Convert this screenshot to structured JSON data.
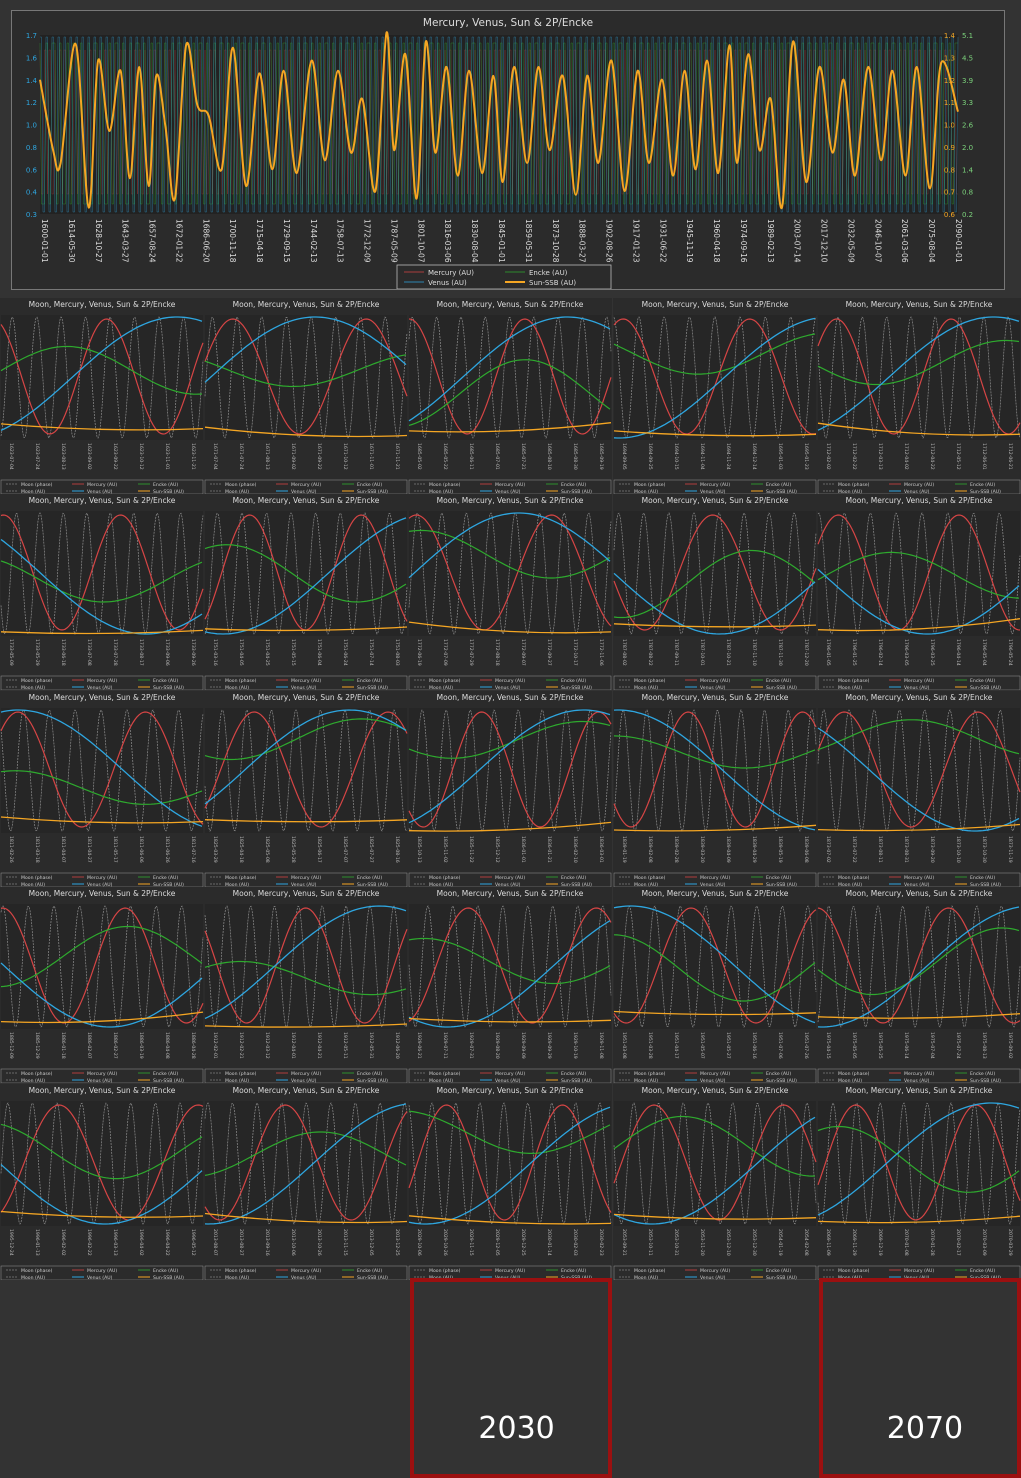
{
  "colors": {
    "moon": "#aaaaaa",
    "mercury": "#d64545",
    "venus": "#2ea6e0",
    "encke": "#2eaa2e",
    "sun": "#f5a623",
    "text": "#dddddd",
    "right_axis": "#7cd37c",
    "highlight": "#9b1010"
  },
  "chart_data": [
    {
      "type": "line",
      "title": "Mercury, Venus, Sun & 2P/Encke",
      "xlabel": "",
      "ylabel": "",
      "ylim": [
        0.3,
        1.7
      ],
      "y2lim": [
        0.2,
        5.1
      ],
      "y_ticks": [
        "0.3",
        "0.4",
        "0.6",
        "0.8",
        "1.0",
        "1.2",
        "1.4",
        "1.6",
        "1.7"
      ],
      "y2_ticks": [
        "0.2",
        "0.8",
        "1.4",
        "2.0",
        "2.6",
        "3.3",
        "3.9",
        "4.5",
        "5.1"
      ],
      "y2_inner_ticks": [
        "0.6",
        "0.7",
        "0.8",
        "0.9",
        "1.0",
        "1.1",
        "1.2",
        "1.3",
        "1.4"
      ],
      "x_tick_labels": [
        "1600-01-01",
        "1614-05-30",
        "1628-10-27",
        "1643-03-27",
        "1657-08-24",
        "1672-01-22",
        "1686-06-20",
        "1700-11-18",
        "1715-04-18",
        "1729-09-15",
        "1744-02-13",
        "1758-07-13",
        "1772-12-09",
        "1787-05-09",
        "1801-10-07",
        "1816-03-06",
        "1830-08-04",
        "1845-01-01",
        "1859-05-31",
        "1873-10-28",
        "1888-03-27",
        "1902-08-26",
        "1917-01-23",
        "1931-06-22",
        "1945-11-19",
        "1960-04-18",
        "1974-09-16",
        "1989-02-13",
        "2003-07-14",
        "2017-12-10",
        "2032-05-09",
        "2046-10-07",
        "2061-03-06",
        "2075-08-04",
        "2090-01-01"
      ],
      "legend": [
        "Mercury (AU)",
        "Encke (AU)",
        "Venus (AU)",
        "Sun-SSB (AU)"
      ],
      "legend_position": "bottom-center",
      "sun_ssb": {
        "x_years": [
          1600,
          1607,
          1611,
          1619,
          1626,
          1631,
          1637,
          1643,
          1648,
          1653,
          1658,
          1662,
          1667,
          1672,
          1678,
          1684,
          1690,
          1697,
          1703,
          1710,
          1717,
          1724,
          1730,
          1737,
          1745,
          1752,
          1759,
          1766,
          1772,
          1779,
          1785,
          1789,
          1795,
          1801,
          1806,
          1811,
          1817,
          1823,
          1829,
          1836,
          1842,
          1847,
          1853,
          1860,
          1866,
          1872,
          1879,
          1886,
          1892,
          1898,
          1905,
          1912,
          1919,
          1925,
          1932,
          1938,
          1944,
          1950,
          1956,
          1962,
          1968,
          1972,
          1978,
          1984,
          1990,
          1996,
          2002,
          2009,
          2016,
          2023,
          2029,
          2035,
          2042,
          2049,
          2055,
          2062,
          2068,
          2075,
          2081,
          2090
        ],
        "y_au": [
          1.35,
          0.8,
          0.7,
          1.63,
          0.35,
          1.5,
          0.95,
          1.42,
          0.58,
          1.45,
          0.52,
          1.38,
          0.98,
          0.42,
          1.62,
          1.15,
          1.07,
          0.65,
          1.6,
          0.52,
          1.4,
          0.65,
          1.42,
          0.62,
          1.5,
          0.72,
          1.42,
          0.78,
          1.2,
          0.48,
          1.72,
          0.8,
          1.55,
          0.42,
          1.65,
          0.78,
          1.45,
          0.6,
          1.42,
          0.62,
          1.38,
          0.55,
          1.45,
          0.7,
          1.45,
          0.8,
          1.38,
          0.45,
          1.38,
          0.7,
          1.5,
          0.48,
          1.42,
          0.7,
          1.35,
          0.6,
          1.42,
          0.65,
          1.5,
          0.62,
          1.62,
          0.7,
          1.55,
          0.8,
          1.2,
          0.35,
          1.65,
          0.55,
          1.45,
          0.78,
          1.35,
          0.6,
          1.45,
          0.72,
          1.42,
          0.6,
          1.45,
          0.5,
          1.48,
          1.1
        ]
      }
    },
    {
      "type": "line-grid",
      "rows": 6,
      "cols": 5,
      "title": "Moon, Mercury, Venus, Sun & 2P/Encke",
      "legend": [
        "Moon (phase)",
        "Mercury (AU)",
        "Encke (AU)",
        "Moon (AU)",
        "Venus (AU)",
        "Sun-SSB (AU)"
      ],
      "highlights": [
        {
          "row": 5,
          "col": 2,
          "label": "2030"
        },
        {
          "row": 5,
          "col": 4,
          "label": "2070"
        }
      ],
      "panels": [
        {
          "date_labels": [
            "1623-07-04",
            "1623-07-24",
            "1623-08-13",
            "1623-09-02",
            "1623-09-22",
            "1623-10-12",
            "1623-11-01",
            "1623-11-21"
          ]
        },
        {
          "date_labels": [
            "1671-07-04",
            "1671-07-24",
            "1671-08-13",
            "1671-09-02",
            "1671-09-22",
            "1671-10-12",
            "1671-11-01",
            "1671-11-21"
          ]
        },
        {
          "date_labels": [
            "1685-05-02",
            "1685-05-22",
            "1685-06-11",
            "1685-07-01",
            "1685-07-21",
            "1685-08-10",
            "1685-08-30",
            "1685-09-19"
          ]
        },
        {
          "date_labels": [
            "1694-09-05",
            "1694-09-25",
            "1694-10-15",
            "1694-11-04",
            "1694-11-24",
            "1694-12-14",
            "1695-01-03",
            "1695-01-23"
          ]
        },
        {
          "date_labels": [
            "1712-02-02",
            "1712-02-22",
            "1712-03-13",
            "1712-04-02",
            "1712-04-22",
            "1712-05-12",
            "1712-06-01",
            "1712-06-21"
          ]
        },
        {
          "date_labels": [
            "1733-05-09",
            "1733-05-29",
            "1733-06-18",
            "1733-07-08",
            "1733-07-28",
            "1733-08-17",
            "1733-09-06",
            "1733-09-26"
          ]
        },
        {
          "date_labels": [
            "1751-03-16",
            "1751-04-05",
            "1751-04-25",
            "1751-05-15",
            "1751-06-04",
            "1751-06-24",
            "1751-07-14",
            "1751-08-03"
          ]
        },
        {
          "date_labels": [
            "1772-06-19",
            "1772-07-09",
            "1772-07-29",
            "1772-08-18",
            "1772-09-07",
            "1772-09-27",
            "1772-10-17",
            "1772-11-06"
          ]
        },
        {
          "date_labels": [
            "1787-08-02",
            "1787-08-22",
            "1787-09-11",
            "1787-10-01",
            "1787-10-21",
            "1787-11-10",
            "1787-11-30",
            "1787-12-20"
          ]
        },
        {
          "date_labels": [
            "1796-01-05",
            "1796-01-25",
            "1796-02-14",
            "1796-03-05",
            "1796-03-25",
            "1796-04-14",
            "1796-05-04",
            "1796-05-24"
          ]
        },
        {
          "date_labels": [
            "1811-02-26",
            "1811-03-18",
            "1811-04-07",
            "1811-04-27",
            "1811-05-17",
            "1811-06-06",
            "1811-06-26",
            "1811-07-16"
          ]
        },
        {
          "date_labels": [
            "1825-03-29",
            "1825-04-18",
            "1825-05-08",
            "1825-05-28",
            "1825-06-17",
            "1825-07-07",
            "1825-07-27",
            "1825-08-16"
          ]
        },
        {
          "date_labels": [
            "1835-10-13",
            "1835-11-02",
            "1835-11-22",
            "1835-12-12",
            "1836-01-01",
            "1836-01-21",
            "1836-02-10",
            "1836-03-01"
          ]
        },
        {
          "date_labels": [
            "1839-01-19",
            "1839-02-08",
            "1839-02-28",
            "1839-03-20",
            "1839-04-09",
            "1839-04-29",
            "1839-05-19",
            "1839-06-08"
          ]
        },
        {
          "date_labels": [
            "1873-07-02",
            "1873-07-22",
            "1873-08-11",
            "1873-08-31",
            "1873-09-20",
            "1873-10-10",
            "1873-10-30",
            "1873-11-19"
          ]
        },
        {
          "date_labels": [
            "1885-12-09",
            "1885-12-29",
            "1886-01-18",
            "1886-02-07",
            "1886-02-27",
            "1886-03-19",
            "1886-04-08",
            "1886-04-28"
          ]
        },
        {
          "date_labels": [
            "1912-02-01",
            "1912-02-21",
            "1912-03-12",
            "1912-04-01",
            "1912-04-21",
            "1912-05-11",
            "1912-05-31",
            "1912-06-20"
          ]
        },
        {
          "date_labels": [
            "1929-06-21",
            "1929-07-11",
            "1929-07-31",
            "1929-08-20",
            "1929-09-09",
            "1929-09-29",
            "1929-10-19",
            "1929-11-08"
          ]
        },
        {
          "date_labels": [
            "1951-03-08",
            "1951-03-28",
            "1951-04-17",
            "1951-05-07",
            "1951-05-27",
            "1951-06-16",
            "1951-07-06",
            "1951-07-26"
          ]
        },
        {
          "date_labels": [
            "1975-04-15",
            "1975-05-05",
            "1975-05-25",
            "1975-06-14",
            "1975-07-04",
            "1975-07-24",
            "1975-08-13",
            "1975-09-02"
          ]
        },
        {
          "date_labels": [
            "1995-12-24",
            "1996-01-13",
            "1996-02-02",
            "1996-02-22",
            "1996-03-13",
            "1996-04-02",
            "1996-04-22",
            "1996-05-12"
          ]
        },
        {
          "date_labels": [
            "2013-08-07",
            "2013-08-27",
            "2013-09-16",
            "2013-10-06",
            "2013-10-26",
            "2013-11-15",
            "2013-12-05",
            "2013-12-25"
          ]
        },
        {
          "date_labels": [
            "2029-10-06",
            "2029-10-26",
            "2029-11-15",
            "2029-12-05",
            "2029-12-25",
            "2030-01-14",
            "2030-02-03",
            "2030-02-23"
          ]
        },
        {
          "date_labels": [
            "2053-09-21",
            "2053-10-11",
            "2053-10-31",
            "2053-11-20",
            "2053-12-10",
            "2053-12-30",
            "2054-01-19",
            "2054-02-08"
          ]
        },
        {
          "date_labels": [
            "2069-11-09",
            "2069-11-29",
            "2069-12-19",
            "2070-01-08",
            "2070-01-28",
            "2070-02-17",
            "2070-03-09",
            "2070-03-29"
          ]
        }
      ]
    }
  ]
}
